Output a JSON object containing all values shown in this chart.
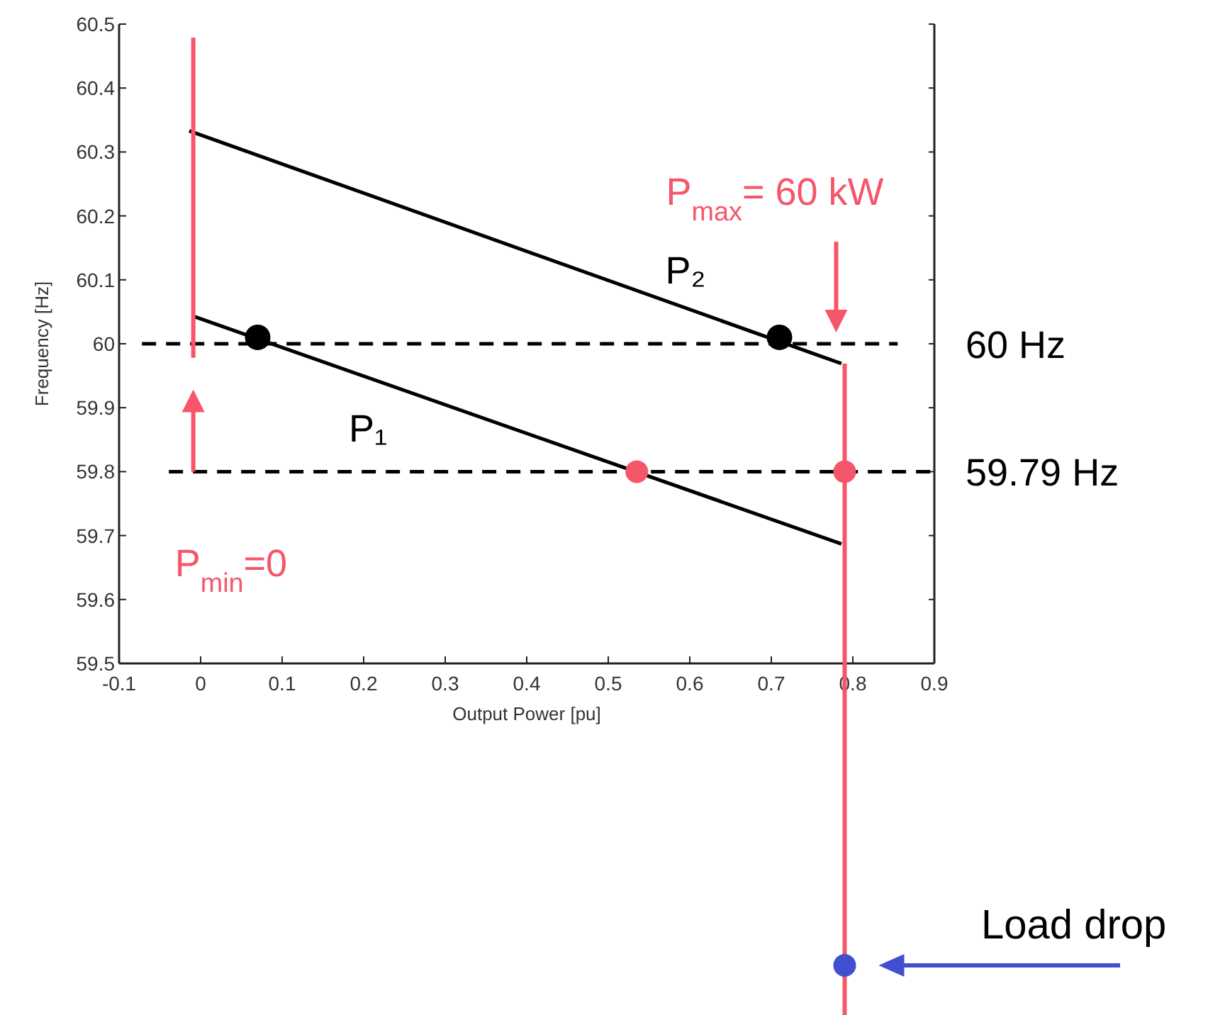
{
  "chart_data": {
    "type": "line",
    "xlabel": "Output Power   [pu]",
    "ylabel": "Frequency    [Hz]",
    "xlim": [
      -0.1,
      0.9
    ],
    "xticks": [
      -0.1,
      0,
      0.1,
      0.2,
      0.3,
      0.4,
      0.5,
      0.6,
      0.7,
      0.8,
      0.9
    ],
    "ylim": [
      59.5,
      60.5
    ],
    "yticks": [
      59.5,
      59.6,
      59.7,
      59.8,
      59.9,
      60,
      60.1,
      60.2,
      60.3,
      60.4,
      60.5
    ],
    "grid": false,
    "legend": false,
    "series": [
      {
        "name": "P₂",
        "color": "#000000",
        "x": [
          -0.014,
          0.786
        ],
        "values": [
          60.333,
          59.969
        ]
      },
      {
        "name": "P₁",
        "color": "#000000",
        "x": [
          -0.009,
          0.786
        ],
        "values": [
          60.043,
          59.687
        ]
      },
      {
        "name": "60 Hz",
        "color": "#000000",
        "line_style": "dashed",
        "x": [
          -0.072,
          0.855
        ],
        "values": [
          60,
          60
        ]
      },
      {
        "name": "59.79 Hz",
        "color": "#000000",
        "line_style": "dashed",
        "x": [
          -0.039,
          0.896
        ],
        "values": [
          59.8,
          59.8
        ]
      },
      {
        "color": "#f5566a",
        "x": [
          -0.009,
          -0.009
        ],
        "values": [
          59.978,
          60.479
        ]
      },
      {
        "color": "#f5566a",
        "x": [
          0.79,
          0.79
        ],
        "values": [
          59.969,
          59.5
        ]
      },
      {
        "type": "scatter",
        "color": "#000000",
        "x": [
          0.07,
          0.71
        ],
        "values": [
          60.01,
          60.01
        ]
      },
      {
        "type": "scatter",
        "color": "#f5566a",
        "x": [
          0.535,
          0.79
        ],
        "values": [
          59.8,
          59.8
        ]
      }
    ],
    "annotations": [
      "P$_{max}$= 60 kW",
      "P$_{min}$=0",
      "Load drop"
    ]
  }
}
